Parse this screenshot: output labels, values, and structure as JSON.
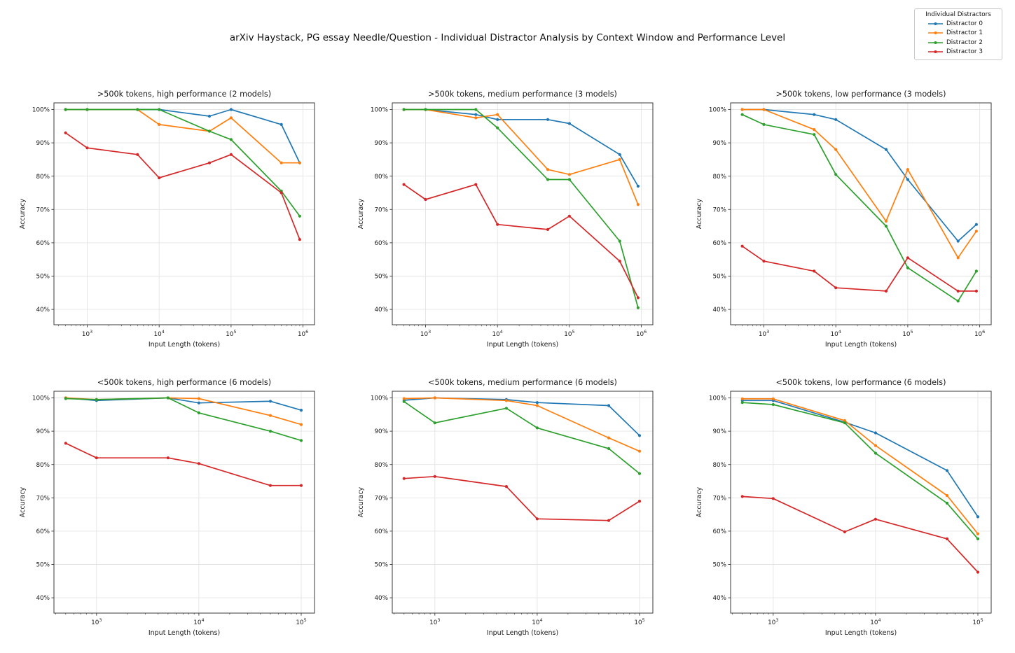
{
  "chart_data": {
    "type": "line",
    "suptitle": "arXiv Haystack, PG essay Needle/Question - Individual Distractor Analysis by Context Window and Performance Level",
    "xlabel": "Input Length (tokens)",
    "ylabel": "Accuracy",
    "xscale": "log",
    "grid": true,
    "ylim": [
      35.4,
      102
    ],
    "ytick_values": [
      100,
      90,
      80,
      70,
      60,
      50,
      40
    ],
    "ytick_labels": [
      "100%",
      "90%",
      "80%",
      "70%",
      "60%",
      "50%",
      "40%"
    ],
    "legend": {
      "title": "Individual Distractors",
      "position": "top-right",
      "entries": [
        {
          "label": "Distractor 0",
          "color": "#1f77b4"
        },
        {
          "label": "Distractor 1",
          "color": "#ff7f0e"
        },
        {
          "label": "Distractor 2",
          "color": "#2ca02c"
        },
        {
          "label": "Distractor 3",
          "color": "#d62728"
        }
      ]
    },
    "subplots": [
      {
        "title": ">500k tokens, high performance (2 models)",
        "x": [
          500,
          1000,
          5000,
          10000,
          50000,
          100000,
          500000,
          900000
        ],
        "xlim_log": [
          2.537,
          6.16
        ],
        "xticks": [
          1000,
          10000,
          100000,
          1000000
        ],
        "series": [
          {
            "name": "Distractor 0",
            "values": [
              100,
              100,
              100,
              100,
              98,
              100,
              95.5,
              84
            ]
          },
          {
            "name": "Distractor 1",
            "values": [
              100,
              100,
              100,
              95.5,
              93.5,
              97.5,
              84,
              84
            ]
          },
          {
            "name": "Distractor 2",
            "values": [
              100,
              100,
              100,
              100,
              93.5,
              91,
              75.5,
              68
            ]
          },
          {
            "name": "Distractor 3",
            "values": [
              93,
              88.5,
              86.5,
              79.5,
              84,
              86.5,
              75,
              61
            ]
          }
        ]
      },
      {
        "title": ">500k tokens, medium performance (3 models)",
        "x": [
          500,
          1000,
          5000,
          10000,
          50000,
          100000,
          500000,
          900000
        ],
        "xlim_log": [
          2.537,
          6.16
        ],
        "xticks": [
          1000,
          10000,
          100000,
          1000000
        ],
        "series": [
          {
            "name": "Distractor 0",
            "values": [
              100,
              100,
              98.5,
              97,
              97,
              95.8,
              86.5,
              77
            ]
          },
          {
            "name": "Distractor 1",
            "values": [
              100,
              100,
              97.5,
              98.5,
              82,
              80.5,
              85,
              71.5
            ]
          },
          {
            "name": "Distractor 2",
            "values": [
              100,
              100,
              100,
              94.5,
              79,
              79,
              60.5,
              40.5
            ]
          },
          {
            "name": "Distractor 3",
            "values": [
              77.5,
              73,
              77.5,
              65.5,
              64,
              68,
              54.5,
              43.5
            ]
          }
        ]
      },
      {
        "title": ">500k tokens, low performance (3 models)",
        "x": [
          500,
          1000,
          5000,
          10000,
          50000,
          100000,
          500000,
          900000
        ],
        "xlim_log": [
          2.537,
          6.16
        ],
        "xticks": [
          1000,
          10000,
          100000,
          1000000
        ],
        "series": [
          {
            "name": "Distractor 0",
            "values": [
              100,
              100,
              98.5,
              97,
              88,
              79,
              60.5,
              65.5
            ]
          },
          {
            "name": "Distractor 1",
            "values": [
              100,
              100,
              94,
              88,
              66.5,
              82,
              55.5,
              63.5
            ]
          },
          {
            "name": "Distractor 2",
            "values": [
              98.5,
              95.5,
              92.5,
              80.5,
              65,
              52.5,
              42.5,
              51.5
            ]
          },
          {
            "name": "Distractor 3",
            "values": [
              59,
              54.5,
              51.5,
              46.5,
              45.5,
              55.5,
              45.5,
              45.5
            ]
          }
        ]
      },
      {
        "title": "<500k tokens, high performance (6 models)",
        "x": [
          500,
          1000,
          5000,
          10000,
          50000,
          100000
        ],
        "xlim_log": [
          2.584,
          5.13
        ],
        "xticks": [
          1000,
          10000,
          100000
        ],
        "series": [
          {
            "name": "Distractor 0",
            "values": [
              100,
              99.2,
              100,
              98.5,
              99,
              96.3
            ]
          },
          {
            "name": "Distractor 1",
            "values": [
              100,
              99.5,
              100,
              99.8,
              94.7,
              92
            ]
          },
          {
            "name": "Distractor 2",
            "values": [
              99.8,
              99.5,
              100,
              95.5,
              90,
              87.2
            ]
          },
          {
            "name": "Distractor 3",
            "values": [
              86.4,
              82,
              82,
              80.3,
              73.7,
              73.7
            ]
          }
        ]
      },
      {
        "title": "<500k tokens, medium performance (6 models)",
        "x": [
          500,
          1000,
          5000,
          10000,
          50000,
          100000
        ],
        "xlim_log": [
          2.584,
          5.13
        ],
        "xticks": [
          1000,
          10000,
          100000
        ],
        "series": [
          {
            "name": "Distractor 0",
            "values": [
              99.3,
              100,
              99.5,
              98.6,
              97.7,
              88.7
            ]
          },
          {
            "name": "Distractor 1",
            "values": [
              99.8,
              100,
              99.2,
              97.7,
              88,
              84
            ]
          },
          {
            "name": "Distractor 2",
            "values": [
              98.9,
              92.5,
              96.9,
              91,
              84.8,
              77.3
            ]
          },
          {
            "name": "Distractor 3",
            "values": [
              75.8,
              76.4,
              73.4,
              63.7,
              63.2,
              69
            ]
          }
        ]
      },
      {
        "title": "<500k tokens, low performance (6 models)",
        "x": [
          500,
          1000,
          5000,
          10000,
          50000,
          100000
        ],
        "xlim_log": [
          2.584,
          5.13
        ],
        "xticks": [
          1000,
          10000,
          100000
        ],
        "series": [
          {
            "name": "Distractor 0",
            "values": [
              99.2,
              99.2,
              92.7,
              89.5,
              78.2,
              64.3
            ]
          },
          {
            "name": "Distractor 1",
            "values": [
              99.7,
              99.7,
              93.2,
              85.7,
              70.7,
              59.2
            ]
          },
          {
            "name": "Distractor 2",
            "values": [
              98.6,
              98,
              92.5,
              83.4,
              68.4,
              57.7
            ]
          },
          {
            "name": "Distractor 3",
            "values": [
              70.4,
              69.8,
              59.8,
              63.6,
              57.7,
              47.7
            ]
          }
        ]
      }
    ]
  }
}
